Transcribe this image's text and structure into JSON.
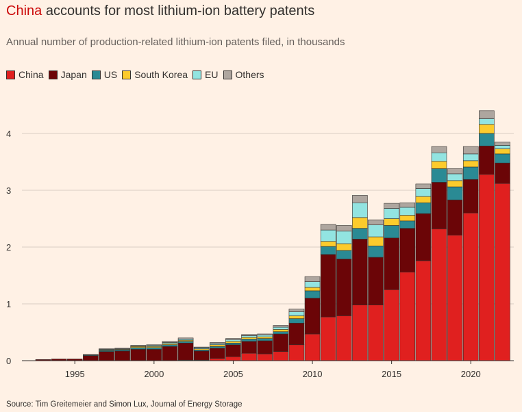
{
  "header": {
    "title_highlight": "China",
    "title_rest": " accounts for most lithium-ion battery patents",
    "subtitle": "Annual number of production-related lithium-ion patents filed, in thousands"
  },
  "source": "Source: Tim Greitemeier and Simon Lux, Journal of Energy Storage",
  "colors": {
    "China": "#e0201f",
    "Japan": "#6b0507",
    "US": "#2a8a94",
    "South Korea": "#fccb2c",
    "EU": "#92e4e1",
    "Others": "#aea69f",
    "background": "#fff1e5",
    "highlight": "#cc0a0a"
  },
  "chart_data": {
    "type": "bar",
    "stacked": true,
    "title": "China accounts for most lithium-ion battery patents",
    "subtitle": "Annual number of production-related lithium-ion patents filed, in thousands",
    "xlabel": "",
    "ylabel": "",
    "ylim": [
      0,
      4.5
    ],
    "yticks": [
      "0",
      "1",
      "2",
      "3",
      "4"
    ],
    "xticks": [
      "1995",
      "2000",
      "2005",
      "2010",
      "2015",
      "2020"
    ],
    "grid": true,
    "legend": "top-left",
    "categories": [
      "1993",
      "1994",
      "1995",
      "1996",
      "1997",
      "1998",
      "1999",
      "2000",
      "2001",
      "2002",
      "2003",
      "2004",
      "2005",
      "2006",
      "2007",
      "2008",
      "2009",
      "2010",
      "2011",
      "2012",
      "2013",
      "2014",
      "2015",
      "2016",
      "2017",
      "2018",
      "2019",
      "2020",
      "2021",
      "2022"
    ],
    "series": [
      {
        "name": "China",
        "values": [
          0.0,
          0.0,
          0.0,
          0.0,
          0.0,
          0.0,
          0.0,
          0.0,
          0.0,
          0.01,
          0.01,
          0.04,
          0.07,
          0.13,
          0.12,
          0.16,
          0.28,
          0.47,
          0.77,
          0.79,
          0.98,
          0.98,
          1.25,
          1.56,
          1.76,
          2.32,
          2.21,
          2.6,
          3.28,
          3.12
        ]
      },
      {
        "name": "Japan",
        "values": [
          0.02,
          0.03,
          0.03,
          0.09,
          0.16,
          0.17,
          0.2,
          0.2,
          0.25,
          0.3,
          0.16,
          0.18,
          0.21,
          0.21,
          0.23,
          0.31,
          0.38,
          0.63,
          1.1,
          1.0,
          1.16,
          0.84,
          0.91,
          0.77,
          0.83,
          0.82,
          0.62,
          0.59,
          0.5,
          0.36
        ]
      },
      {
        "name": "US",
        "values": [
          0.0,
          0.0,
          0.0,
          0.01,
          0.02,
          0.02,
          0.03,
          0.03,
          0.03,
          0.03,
          0.02,
          0.03,
          0.03,
          0.04,
          0.04,
          0.04,
          0.08,
          0.13,
          0.14,
          0.15,
          0.19,
          0.2,
          0.22,
          0.13,
          0.19,
          0.24,
          0.23,
          0.22,
          0.22,
          0.16
        ]
      },
      {
        "name": "South Korea",
        "values": [
          0.0,
          0.0,
          0.0,
          0.0,
          0.01,
          0.01,
          0.02,
          0.02,
          0.02,
          0.02,
          0.02,
          0.03,
          0.03,
          0.03,
          0.03,
          0.04,
          0.05,
          0.06,
          0.09,
          0.12,
          0.19,
          0.16,
          0.12,
          0.1,
          0.11,
          0.13,
          0.11,
          0.11,
          0.16,
          0.09
        ]
      },
      {
        "name": "EU",
        "values": [
          0.0,
          0.0,
          0.0,
          0.0,
          0.01,
          0.01,
          0.01,
          0.02,
          0.02,
          0.02,
          0.02,
          0.02,
          0.03,
          0.03,
          0.03,
          0.04,
          0.07,
          0.1,
          0.2,
          0.22,
          0.26,
          0.21,
          0.18,
          0.14,
          0.14,
          0.15,
          0.12,
          0.12,
          0.1,
          0.06
        ]
      },
      {
        "name": "Others",
        "values": [
          0.0,
          0.0,
          0.0,
          0.01,
          0.01,
          0.01,
          0.01,
          0.01,
          0.02,
          0.02,
          0.01,
          0.02,
          0.02,
          0.02,
          0.02,
          0.03,
          0.05,
          0.09,
          0.1,
          0.1,
          0.13,
          0.09,
          0.09,
          0.08,
          0.08,
          0.11,
          0.09,
          0.13,
          0.14,
          0.06
        ]
      }
    ]
  }
}
